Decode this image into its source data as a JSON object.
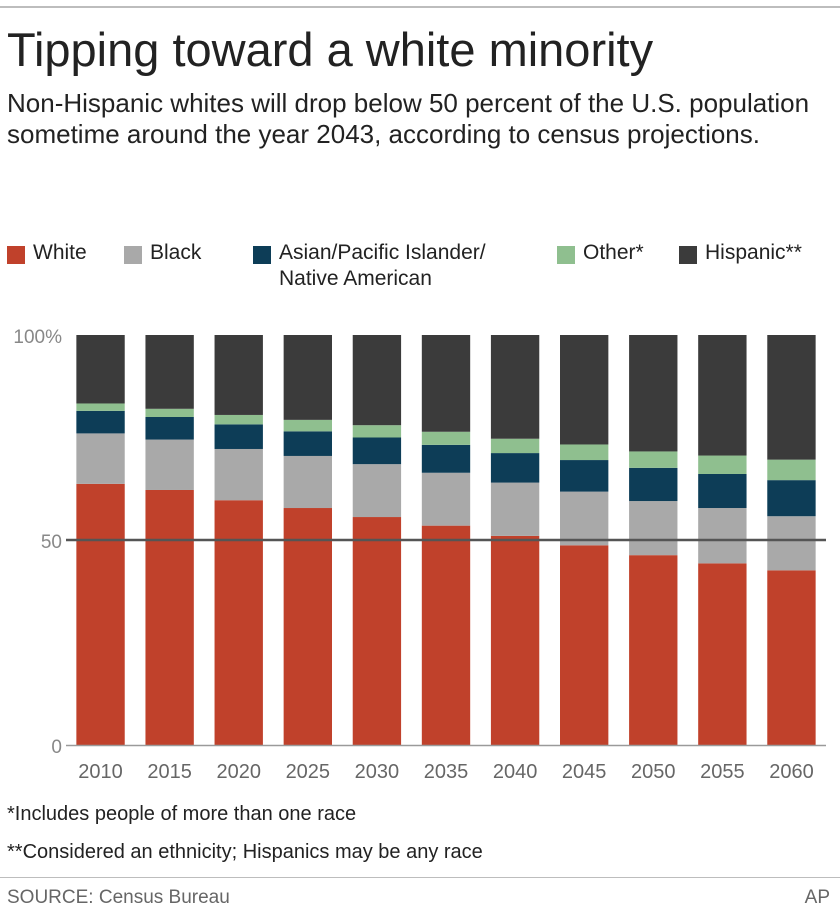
{
  "title": "Tipping toward a white minority",
  "subtitle": "Non-Hispanic whites will drop below 50 percent of the U.S. population sometime around the year 2043, according to census projections.",
  "legend": [
    {
      "label": "White",
      "color": "#c0412b"
    },
    {
      "label": "Black",
      "color": "#a9a9a9"
    },
    {
      "label": "Asian/Pacific Islander/ Native American",
      "line1": "Asian/Pacific Islander/",
      "line2": "Native American",
      "color": "#0d3d57"
    },
    {
      "label": "Other*",
      "color": "#8fbf8f"
    },
    {
      "label": "Hispanic**",
      "color": "#3b3b3b"
    }
  ],
  "chart_data": {
    "type": "bar",
    "stacked": true,
    "categories": [
      "2010",
      "2015",
      "2020",
      "2025",
      "2030",
      "2035",
      "2040",
      "2045",
      "2050",
      "2055",
      "2060"
    ],
    "series": [
      {
        "name": "White",
        "color": "#c0412b",
        "values": [
          63.7,
          62.2,
          59.7,
          57.8,
          55.6,
          53.5,
          51.0,
          48.7,
          46.3,
          44.3,
          42.6
        ]
      },
      {
        "name": "Black",
        "color": "#a9a9a9",
        "values": [
          12.3,
          12.3,
          12.5,
          12.7,
          12.9,
          12.9,
          13.0,
          13.1,
          13.2,
          13.5,
          13.2
        ]
      },
      {
        "name": "Asian/Pacific Islander/ Native American",
        "color": "#0d3d57",
        "values": [
          5.5,
          5.5,
          6.0,
          6.0,
          6.5,
          6.8,
          7.2,
          7.7,
          8.1,
          8.3,
          8.8
        ]
      },
      {
        "name": "Other*",
        "color": "#8fbf8f",
        "values": [
          1.8,
          2.0,
          2.3,
          2.8,
          3.0,
          3.2,
          3.5,
          3.8,
          4.0,
          4.5,
          5.0
        ]
      },
      {
        "name": "Hispanic**",
        "color": "#3b3b3b",
        "values": [
          16.7,
          18.0,
          19.5,
          20.7,
          22.0,
          23.6,
          25.3,
          26.7,
          28.4,
          29.4,
          30.4
        ]
      }
    ],
    "y_ticks": [
      {
        "value": 0,
        "label": "0"
      },
      {
        "value": 50,
        "label": "50"
      },
      {
        "value": 100,
        "label": "100%"
      }
    ],
    "ylim": [
      0,
      100
    ],
    "reference_line": 50,
    "xlabel": "",
    "ylabel": "",
    "legend_position": "top"
  },
  "notes": [
    "*Includes people of more than one race",
    "**Considered an ethnicity; Hispanics may be any race"
  ],
  "source": "SOURCE: Census Bureau",
  "credit": "AP"
}
